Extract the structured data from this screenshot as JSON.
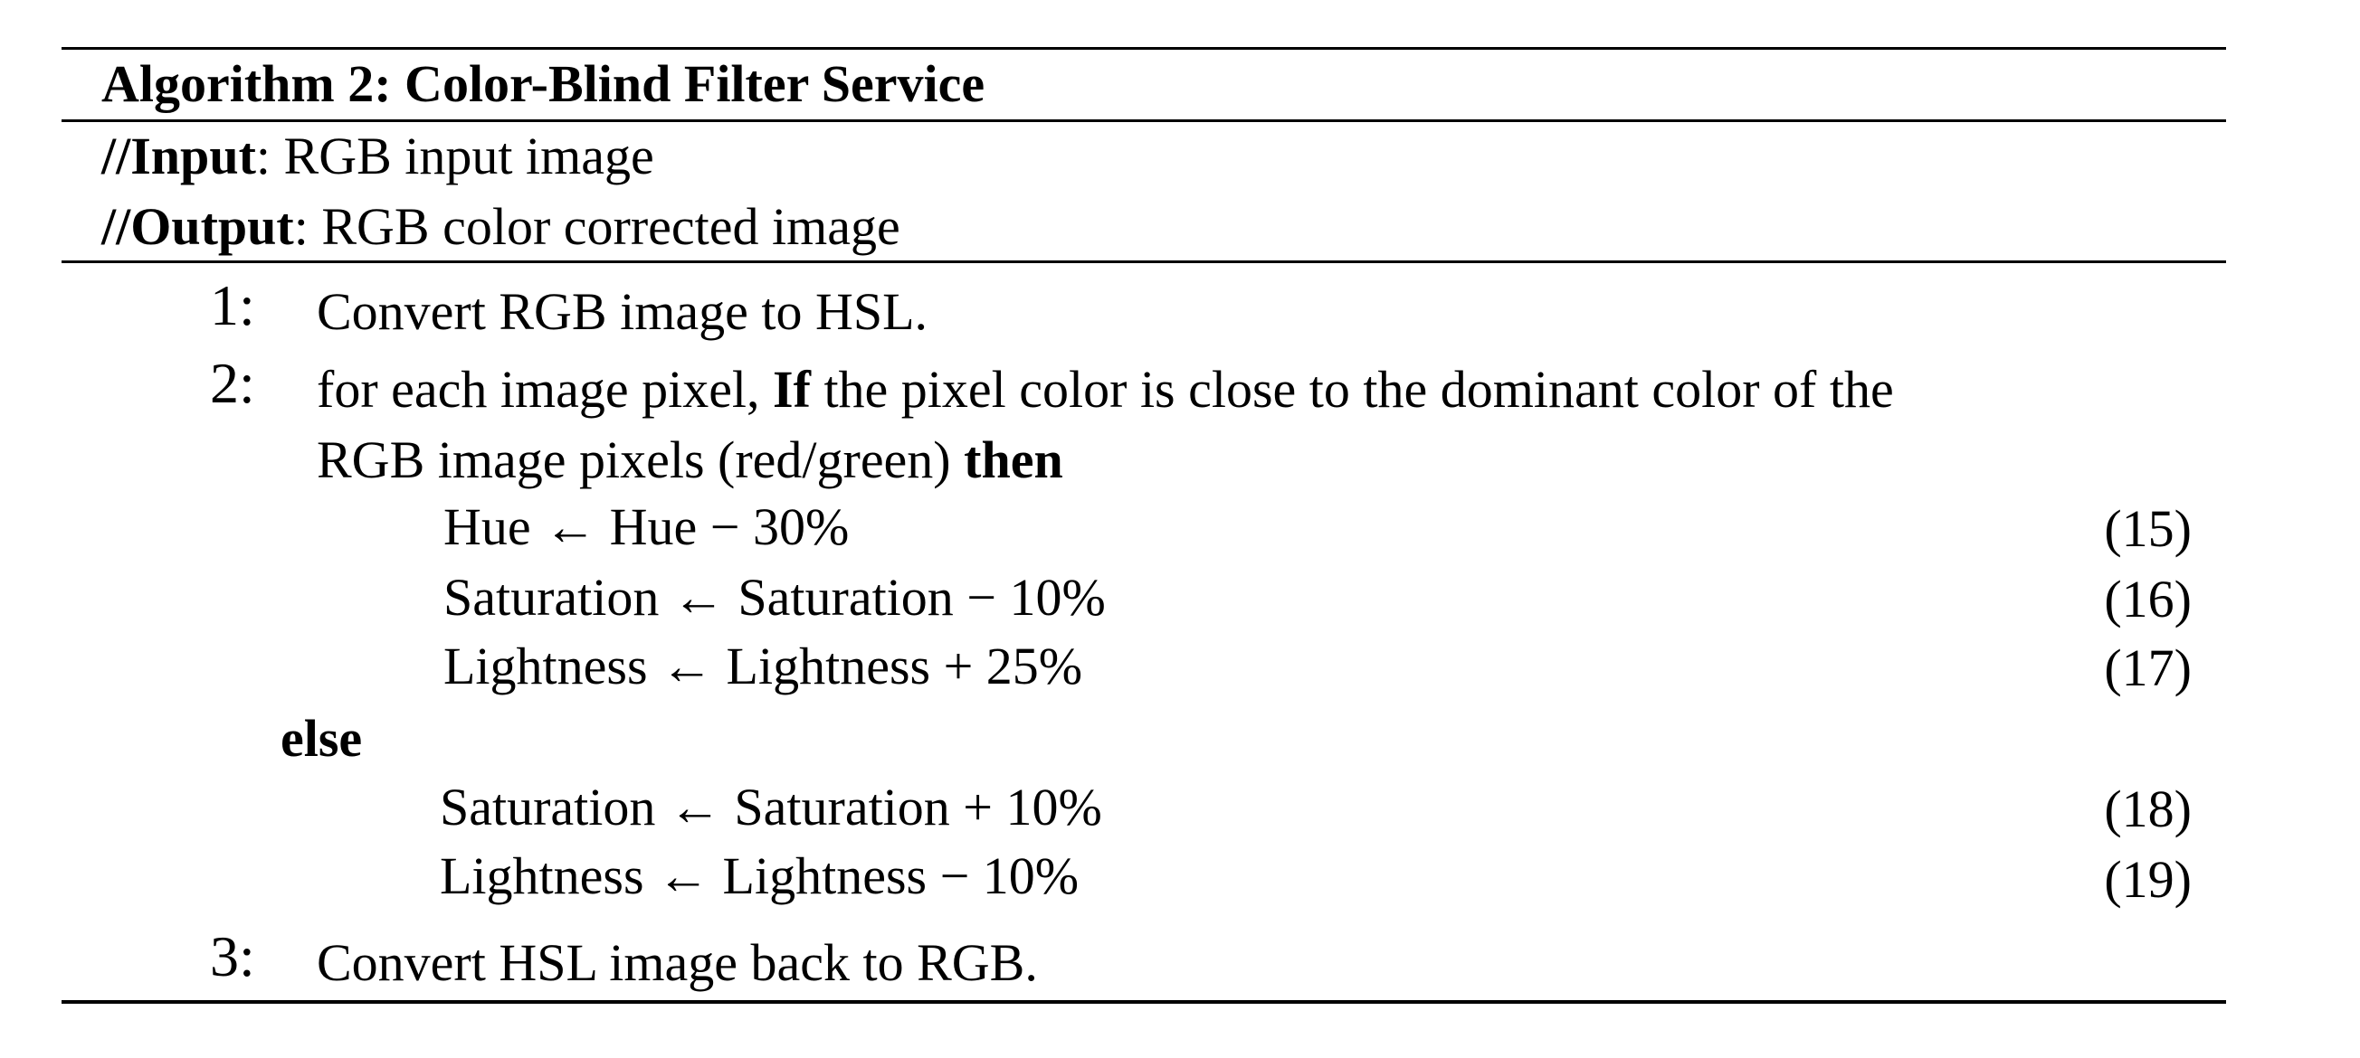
{
  "algorithm": {
    "title": "Algorithm 2: Color-Blind Filter Service",
    "input_label": "//Input",
    "input_text": ": RGB input image",
    "output_label": "//Output",
    "output_text": ": RGB color corrected image",
    "steps": [
      {
        "number": "1:",
        "text": "Convert RGB image to HSL."
      },
      {
        "number": "2:",
        "text_pre": "for each image pixel, ",
        "kw_if": "If",
        "text_mid": " the pixel color is close to the dominant color of the",
        "text_line2": "RGB image pixels (red/green) ",
        "kw_then": "then",
        "then_equations": [
          {
            "expr": "Hue ← Hue − 30%",
            "number": "(15)"
          },
          {
            "expr": "Saturation ← Saturation − 10%",
            "number": "(16)"
          },
          {
            "expr": "Lightness ← Lightness + 25%",
            "number": "(17)"
          }
        ],
        "kw_else": "else",
        "else_equations": [
          {
            "expr": "Saturation ← Saturation + 10%",
            "number": "(18)"
          },
          {
            "expr": "Lightness ← Lightness − 10%",
            "number": "(19)"
          }
        ]
      },
      {
        "number": "3:",
        "text": "Convert HSL image back to RGB."
      }
    ]
  }
}
